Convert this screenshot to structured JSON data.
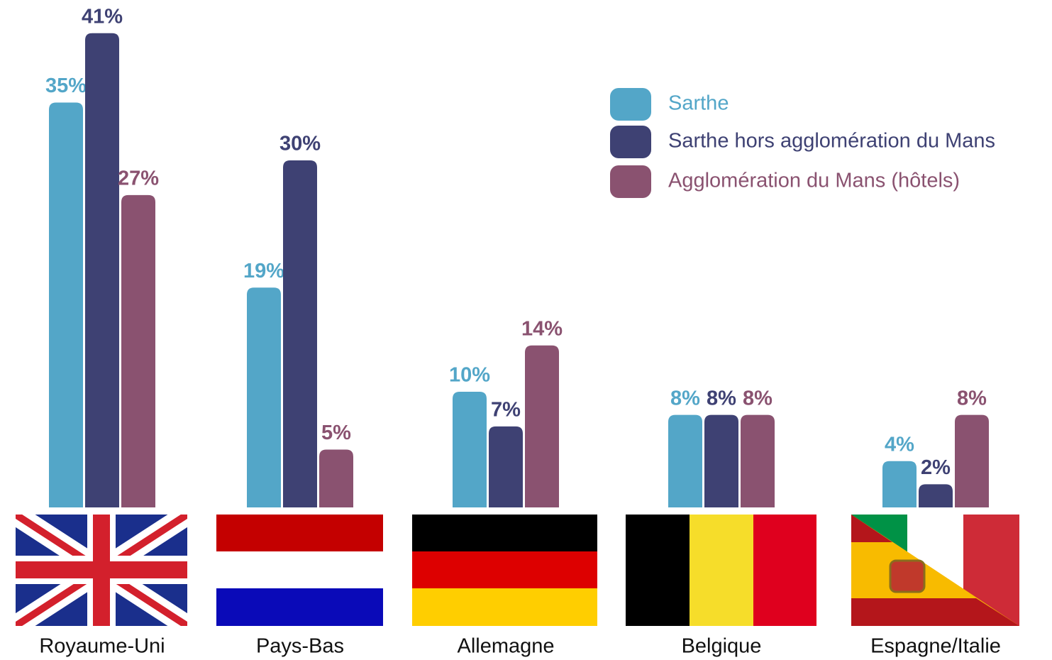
{
  "chart_data": {
    "type": "bar",
    "categories": [
      "Royaume-Uni",
      "Pays-Bas",
      "Allemagne",
      "Belgique",
      "Espagne/Italie"
    ],
    "series": [
      {
        "name": "Sarthe",
        "color": "#53a6c8",
        "values": [
          35,
          19,
          10,
          8,
          4
        ],
        "value_labels": [
          "35%",
          "19%",
          "10%",
          "8%",
          "4%"
        ]
      },
      {
        "name": "Sarthe hors agglomération du Mans",
        "color": "#3e4173",
        "values": [
          41,
          30,
          7,
          8,
          2
        ],
        "value_labels": [
          "41%",
          "30%",
          "7%",
          "8%",
          "2%"
        ]
      },
      {
        "name": "Agglomération du Mans (hôtels)",
        "color": "#8a5270",
        "values": [
          27,
          5,
          14,
          8,
          8
        ],
        "value_labels": [
          "27%",
          "5%",
          "14%",
          "8%",
          "8%"
        ]
      }
    ],
    "legend": "top-right"
  }
}
